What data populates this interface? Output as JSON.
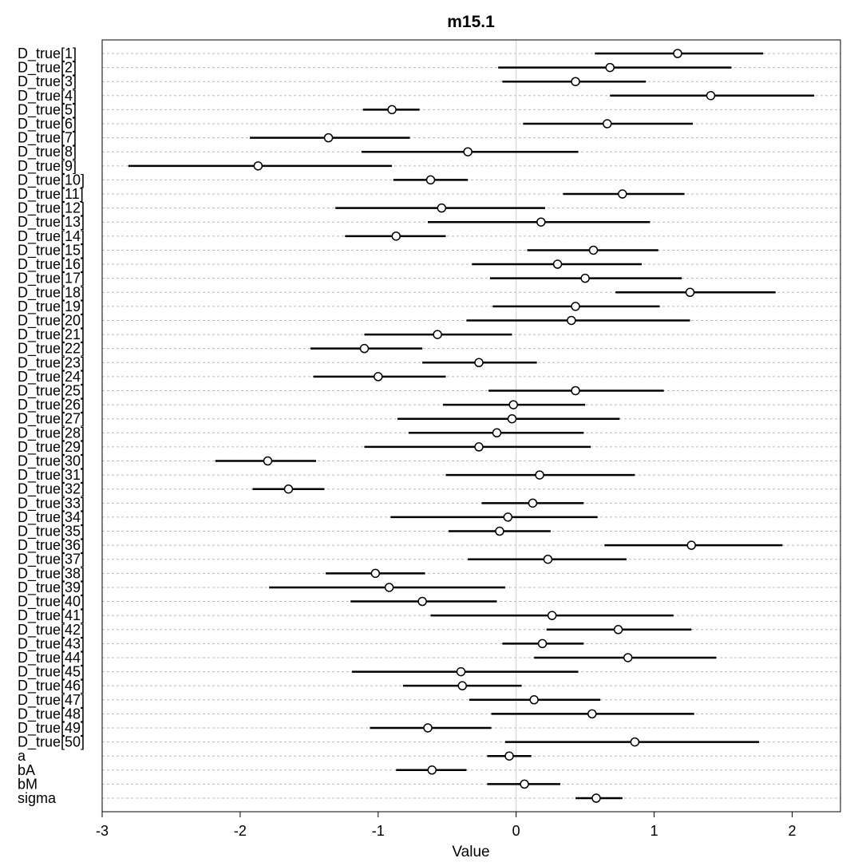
{
  "chart_data": {
    "type": "scatter",
    "subtype": "interval-dot-plot",
    "title": "m15.1",
    "xlabel": "Value",
    "ylabel": "",
    "xlim": [
      -3,
      2.35
    ],
    "xticks": [
      -3,
      -2,
      -1,
      0,
      1,
      2
    ],
    "xtick_labels": [
      "-3",
      "-2",
      "-1",
      "0",
      "1",
      "2"
    ],
    "grid": "horizontal dotted per row, vertical at 0",
    "parameters": [
      {
        "name": "D_true[1]",
        "mean": 1.17,
        "lo": 0.57,
        "hi": 1.79
      },
      {
        "name": "D_true[2]",
        "mean": 0.68,
        "lo": -0.13,
        "hi": 1.56
      },
      {
        "name": "D_true[3]",
        "mean": 0.43,
        "lo": -0.1,
        "hi": 0.94
      },
      {
        "name": "D_true[4]",
        "mean": 1.41,
        "lo": 0.68,
        "hi": 2.16
      },
      {
        "name": "D_true[5]",
        "mean": -0.9,
        "lo": -1.11,
        "hi": -0.7
      },
      {
        "name": "D_true[6]",
        "mean": 0.66,
        "lo": 0.05,
        "hi": 1.28
      },
      {
        "name": "D_true[7]",
        "mean": -1.36,
        "lo": -1.93,
        "hi": -0.77
      },
      {
        "name": "D_true[8]",
        "mean": -0.35,
        "lo": -1.12,
        "hi": 0.45
      },
      {
        "name": "D_true[9]",
        "mean": -1.87,
        "lo": -2.81,
        "hi": -0.9
      },
      {
        "name": "D_true[10]",
        "mean": -0.62,
        "lo": -0.89,
        "hi": -0.35
      },
      {
        "name": "D_true[11]",
        "mean": 0.77,
        "lo": 0.34,
        "hi": 1.22
      },
      {
        "name": "D_true[12]",
        "mean": -0.54,
        "lo": -1.31,
        "hi": 0.21
      },
      {
        "name": "D_true[13]",
        "mean": 0.18,
        "lo": -0.64,
        "hi": 0.97
      },
      {
        "name": "D_true[14]",
        "mean": -0.87,
        "lo": -1.24,
        "hi": -0.51
      },
      {
        "name": "D_true[15]",
        "mean": 0.56,
        "lo": 0.08,
        "hi": 1.03
      },
      {
        "name": "D_true[16]",
        "mean": 0.3,
        "lo": -0.32,
        "hi": 0.91
      },
      {
        "name": "D_true[17]",
        "mean": 0.5,
        "lo": -0.19,
        "hi": 1.2
      },
      {
        "name": "D_true[18]",
        "mean": 1.26,
        "lo": 0.72,
        "hi": 1.88
      },
      {
        "name": "D_true[19]",
        "mean": 0.43,
        "lo": -0.17,
        "hi": 1.04
      },
      {
        "name": "D_true[20]",
        "mean": 0.4,
        "lo": -0.36,
        "hi": 1.26
      },
      {
        "name": "D_true[21]",
        "mean": -0.57,
        "lo": -1.1,
        "hi": -0.03
      },
      {
        "name": "D_true[22]",
        "mean": -1.1,
        "lo": -1.49,
        "hi": -0.68
      },
      {
        "name": "D_true[23]",
        "mean": -0.27,
        "lo": -0.68,
        "hi": 0.15
      },
      {
        "name": "D_true[24]",
        "mean": -1.0,
        "lo": -1.47,
        "hi": -0.51
      },
      {
        "name": "D_true[25]",
        "mean": 0.43,
        "lo": -0.2,
        "hi": 1.07
      },
      {
        "name": "D_true[26]",
        "mean": -0.02,
        "lo": -0.53,
        "hi": 0.5
      },
      {
        "name": "D_true[27]",
        "mean": -0.03,
        "lo": -0.86,
        "hi": 0.75
      },
      {
        "name": "D_true[28]",
        "mean": -0.14,
        "lo": -0.78,
        "hi": 0.49
      },
      {
        "name": "D_true[29]",
        "mean": -0.27,
        "lo": -1.1,
        "hi": 0.54
      },
      {
        "name": "D_true[30]",
        "mean": -1.8,
        "lo": -2.18,
        "hi": -1.45
      },
      {
        "name": "D_true[31]",
        "mean": 0.17,
        "lo": -0.51,
        "hi": 0.86
      },
      {
        "name": "D_true[32]",
        "mean": -1.65,
        "lo": -1.91,
        "hi": -1.39
      },
      {
        "name": "D_true[33]",
        "mean": 0.12,
        "lo": -0.25,
        "hi": 0.49
      },
      {
        "name": "D_true[34]",
        "mean": -0.06,
        "lo": -0.91,
        "hi": 0.59
      },
      {
        "name": "D_true[35]",
        "mean": -0.12,
        "lo": -0.49,
        "hi": 0.25
      },
      {
        "name": "D_true[36]",
        "mean": 1.27,
        "lo": 0.64,
        "hi": 1.93
      },
      {
        "name": "D_true[37]",
        "mean": 0.23,
        "lo": -0.35,
        "hi": 0.8
      },
      {
        "name": "D_true[38]",
        "mean": -1.02,
        "lo": -1.38,
        "hi": -0.66
      },
      {
        "name": "D_true[39]",
        "mean": -0.92,
        "lo": -1.79,
        "hi": -0.08
      },
      {
        "name": "D_true[40]",
        "mean": -0.68,
        "lo": -1.2,
        "hi": -0.14
      },
      {
        "name": "D_true[41]",
        "mean": 0.26,
        "lo": -0.62,
        "hi": 1.14
      },
      {
        "name": "D_true[42]",
        "mean": 0.74,
        "lo": 0.22,
        "hi": 1.27
      },
      {
        "name": "D_true[43]",
        "mean": 0.19,
        "lo": -0.1,
        "hi": 0.49
      },
      {
        "name": "D_true[44]",
        "mean": 0.81,
        "lo": 0.13,
        "hi": 1.45
      },
      {
        "name": "D_true[45]",
        "mean": -0.4,
        "lo": -1.19,
        "hi": 0.45
      },
      {
        "name": "D_true[46]",
        "mean": -0.39,
        "lo": -0.82,
        "hi": 0.04
      },
      {
        "name": "D_true[47]",
        "mean": 0.13,
        "lo": -0.34,
        "hi": 0.61
      },
      {
        "name": "D_true[48]",
        "mean": 0.55,
        "lo": -0.18,
        "hi": 1.29
      },
      {
        "name": "D_true[49]",
        "mean": -0.64,
        "lo": -1.06,
        "hi": -0.18
      },
      {
        "name": "D_true[50]",
        "mean": 0.86,
        "lo": -0.08,
        "hi": 1.76
      },
      {
        "name": "a",
        "mean": -0.05,
        "lo": -0.21,
        "hi": 0.11
      },
      {
        "name": "bA",
        "mean": -0.61,
        "lo": -0.87,
        "hi": -0.36
      },
      {
        "name": "bM",
        "mean": 0.06,
        "lo": -0.21,
        "hi": 0.32
      },
      {
        "name": "sigma",
        "mean": 0.58,
        "lo": 0.43,
        "hi": 0.77
      }
    ]
  }
}
